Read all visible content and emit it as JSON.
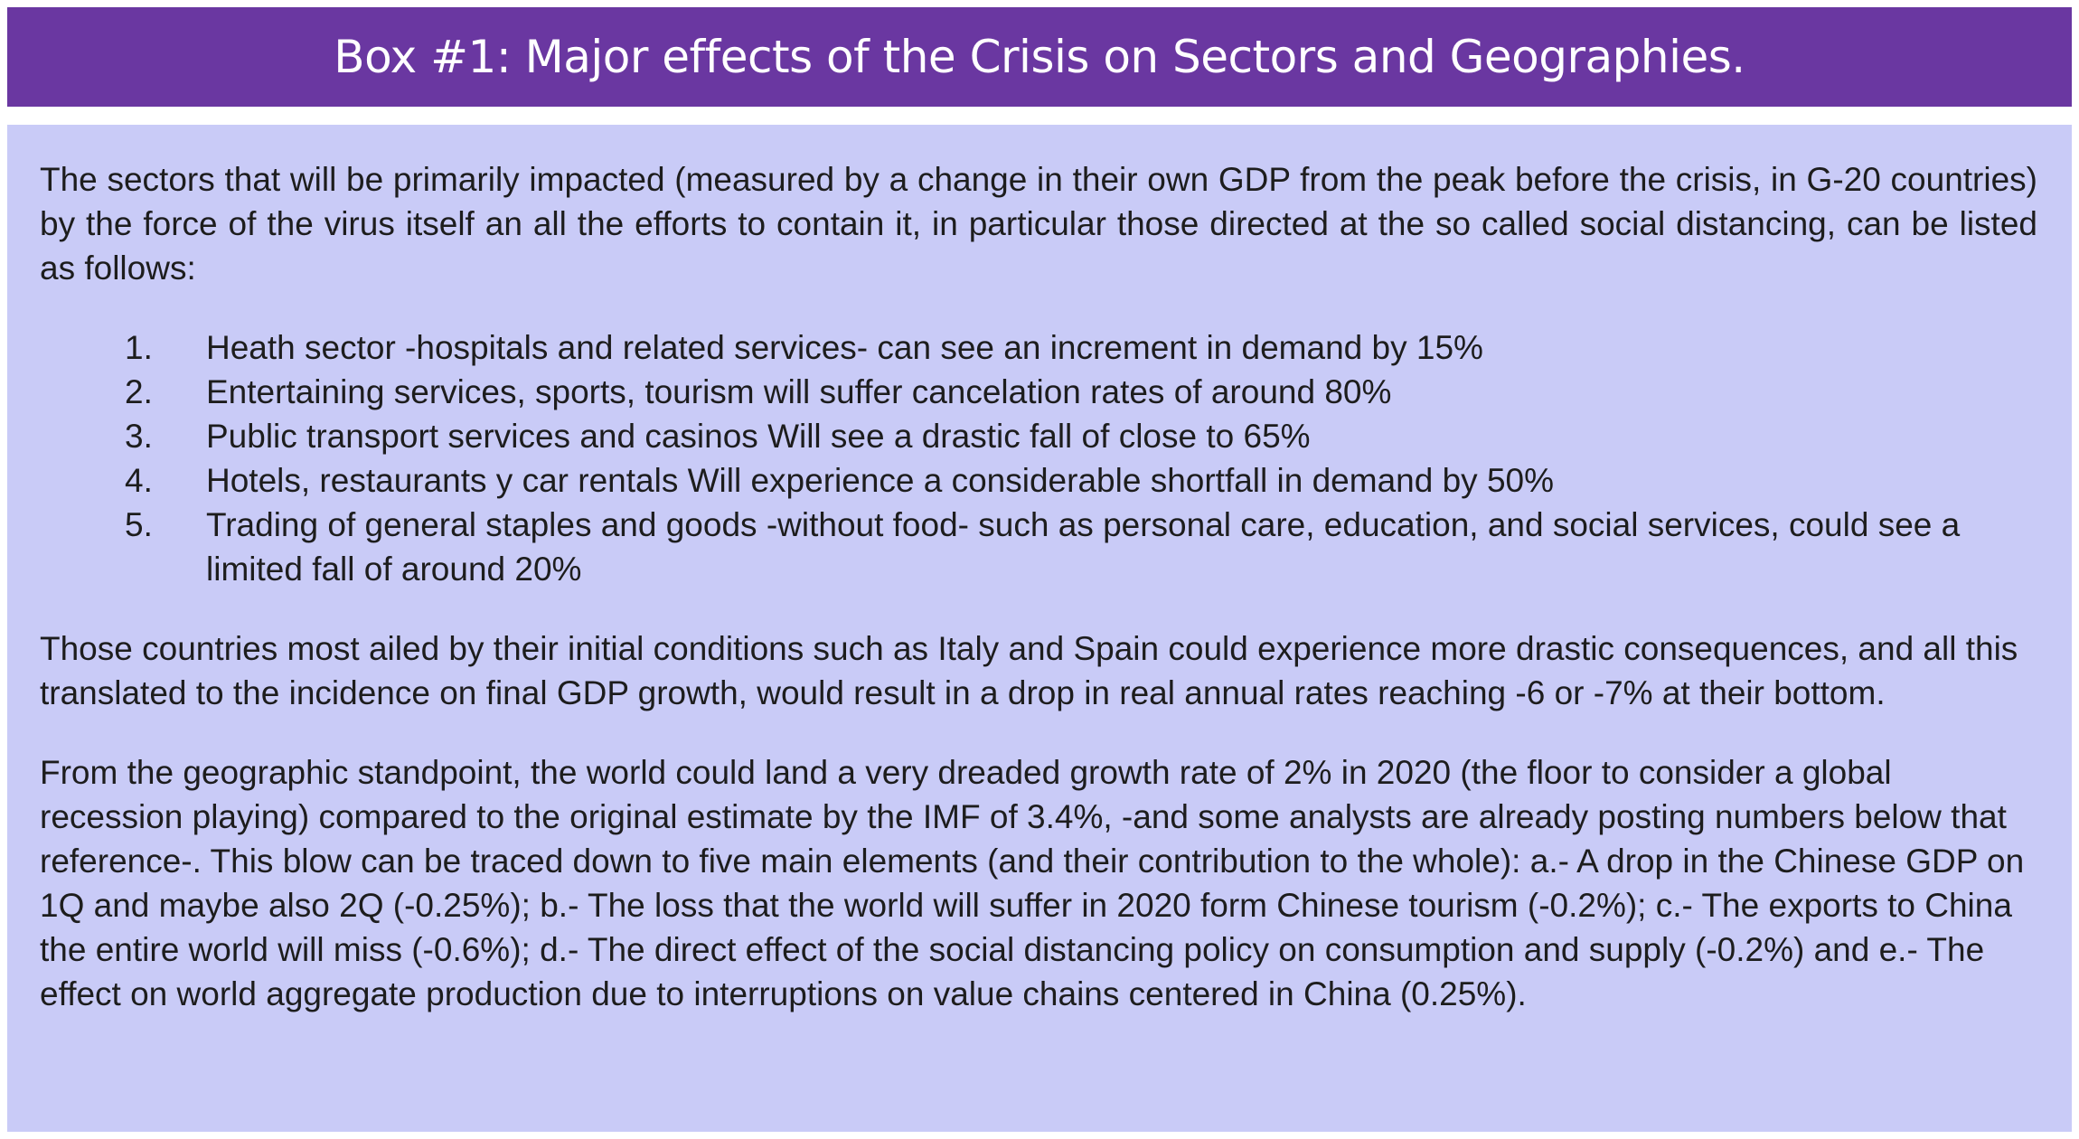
{
  "header": {
    "title": "Box #1: Major effects of the Crisis on Sectors and Geographies."
  },
  "body": {
    "intro": "The sectors that will be primarily impacted (measured by a change in their own GDP from the peak before the crisis, in G-20 countries) by the force of the virus itself an all the efforts to contain it, in particular those directed at the so called social distancing, can be listed as follows:",
    "sectors": [
      {
        "number": "1.",
        "text": "Heath sector -hospitals and related services- can see an increment in demand by 15%"
      },
      {
        "number": "2.",
        "text": "Entertaining services, sports, tourism will suffer cancelation rates of around 80%"
      },
      {
        "number": "3.",
        "text": "Public transport services and casinos Will see a drastic fall of close to 65%"
      },
      {
        "number": "4.",
        "text": "Hotels, restaurants y car rentals Will experience a considerable shortfall in demand by 50%"
      },
      {
        "number": "5.",
        "text": "Trading of general staples and goods -without food-  such as personal care, education, and social services, could see a limited fall of around 20%"
      }
    ],
    "countries": "Those countries most ailed by their initial conditions such as Italy and Spain could experience more drastic consequences, and all this translated to the incidence on final GDP growth, would result in a drop in real annual rates reaching -6 or -7% at their bottom.",
    "geography": "From the geographic standpoint, the world could land a very dreaded growth rate of 2% in 2020 (the floor to consider a global recession playing) compared to the original estimate by the IMF of 3.4%, -and some analysts are already posting numbers below that reference-. This blow can be traced down to five main elements (and their contribution to the whole): a.- A drop in the Chinese GDP on 1Q and maybe also 2Q (-0.25%); b.- The loss that the world will suffer in 2020 form Chinese tourism (-0.2%); c.- The exports to China the entire world will miss (-0.6%); d.- The direct effect of the social distancing policy on consumption and supply (-0.2%) and e.- The effect on world aggregate production due to interruptions on value chains centered in China (0.25%)."
  },
  "colors": {
    "header_bg": "#6a37a1",
    "header_text": "#ffffff",
    "box_bg": "#c9cbf7",
    "body_text": "#1d1d1d"
  }
}
